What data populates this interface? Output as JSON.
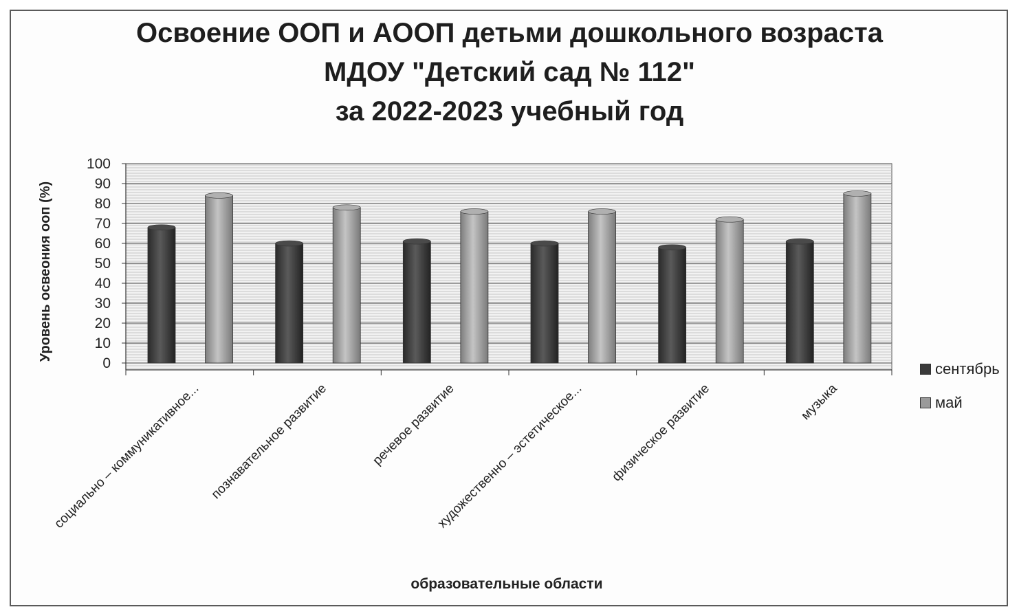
{
  "chart_data": {
    "type": "bar",
    "title_lines": [
      "Освоение ООП и АООП детьми дошкольного возраста",
      "МДОУ \"Детский сад № 112\"",
      "за 2022-2023 учебный год"
    ],
    "xlabel": "образовательные области",
    "ylabel": "Уровень освеония ооп (%)",
    "ylim": [
      0,
      100
    ],
    "yticks": [
      "100",
      "90",
      "80",
      "70",
      "60",
      "50",
      "40",
      "30",
      "20",
      "10",
      "0"
    ],
    "categories": [
      "социально – коммуникативное...",
      "познавательное развитие",
      "речевое развитие",
      "художественно – эстетическое...",
      "физическое развитие",
      "музыка"
    ],
    "series": [
      {
        "name": "сентябрь",
        "values": [
          68,
          60,
          61,
          60,
          58,
          61
        ],
        "color": "#3a3a3a"
      },
      {
        "name": "май",
        "values": [
          84,
          78,
          76,
          76,
          72,
          85
        ],
        "color": "#9a9a9a"
      }
    ],
    "grid": true,
    "legend_position": "right"
  }
}
